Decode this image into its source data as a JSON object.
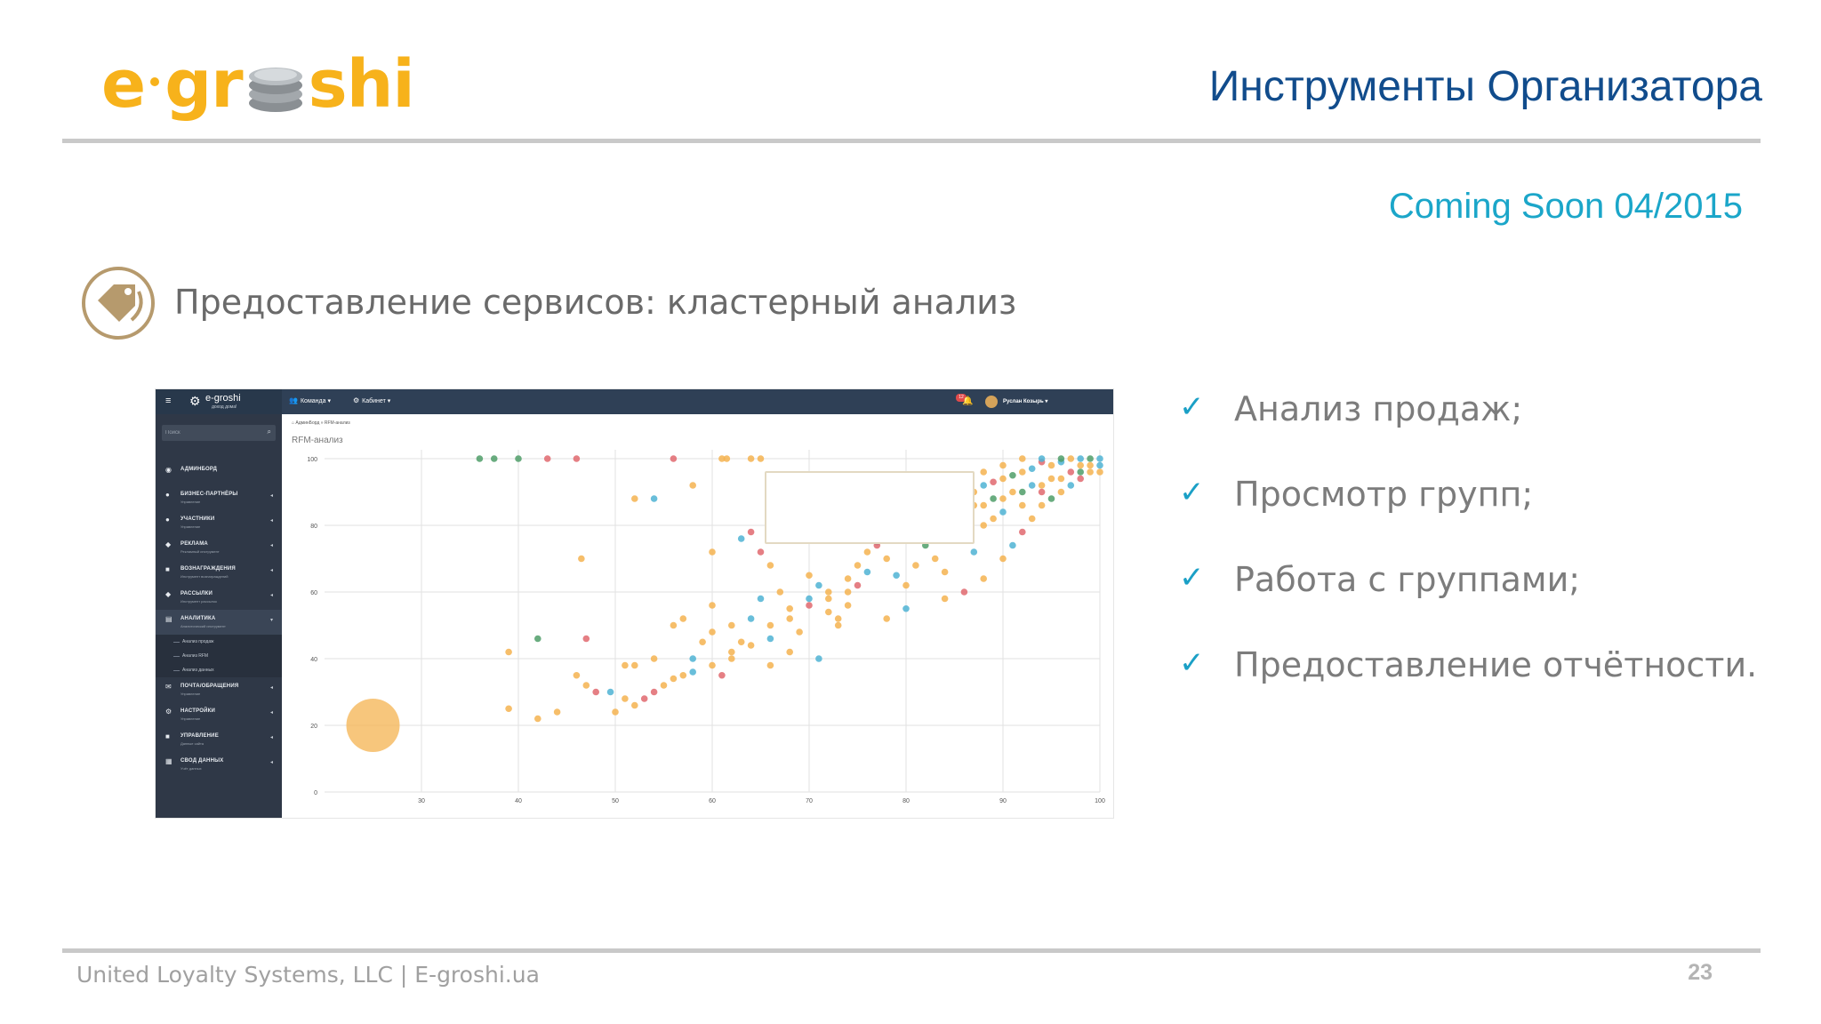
{
  "logo": {
    "text_before": "e",
    "text_after": "gr",
    "text_end": "shi"
  },
  "slide_title": "Инструменты Организатора",
  "coming_soon": "Coming Soon 04/2015",
  "section_title": "Предоставление сервисов: кластерный анализ",
  "app": {
    "brand": "e-groshi",
    "brand_sub": "доход дома!",
    "nav": [
      {
        "label": "Команда",
        "icon": "users-icon"
      },
      {
        "label": "Кабинет",
        "icon": "gear-icon"
      }
    ],
    "notifications_badge": "12",
    "user_name": "Руслан Козырь",
    "search_placeholder": "Поиск",
    "breadcrumb": "АдминБорд » RFM-анализ",
    "page_title": "RFM-анализ",
    "menu": [
      {
        "label": "АДМИНБОРД",
        "sub": "",
        "icon": "dashboard-icon"
      },
      {
        "label": "БИЗНЕС-ПАРТНЁРЫ",
        "sub": "Управление",
        "icon": "user-icon"
      },
      {
        "label": "УЧАСТНИКИ",
        "sub": "Управление",
        "icon": "users-icon"
      },
      {
        "label": "РЕКЛАМА",
        "sub": "Рекламный инструмент",
        "icon": "megaphone-icon"
      },
      {
        "label": "ВОЗНАГРАЖДЕНИЯ",
        "sub": "Инструмент вознаграждений",
        "icon": "gift-icon"
      },
      {
        "label": "РАССЫЛКИ",
        "sub": "Инструмент рассылок",
        "icon": "tag-icon"
      },
      {
        "label": "АНАЛИТИКА",
        "sub": "Аналитический инструмент",
        "icon": "chart-icon"
      }
    ],
    "submenu": [
      "Анализ продаж",
      "Анализ RFM",
      "Анализ данных"
    ],
    "menu_after": [
      {
        "label": "ПОЧТА/ОБРАЩЕНИЯ",
        "sub": "Управление",
        "icon": "mail-icon"
      },
      {
        "label": "НАСТРОЙКИ",
        "sub": "Управление",
        "icon": "cogs-icon"
      },
      {
        "label": "УПРАВЛЕНИЕ",
        "sub": "Данные сайта",
        "icon": "briefcase-icon"
      },
      {
        "label": "СВОД ДАННЫХ",
        "sub": "Учёт данных",
        "icon": "table-icon"
      }
    ]
  },
  "bullets": [
    "Анализ продаж;",
    "Просмотр групп;",
    "Работа с группами;",
    "Предоставление отчётности."
  ],
  "footer": "United Loyalty Systems, LLC | E-groshi.ua",
  "page_number": "23",
  "chart_data": {
    "type": "scatter",
    "xlim": [
      20,
      100
    ],
    "ylim": [
      0,
      100
    ],
    "x_ticks": [
      30,
      40,
      50,
      60,
      70,
      80,
      90,
      100
    ],
    "y_ticks": [
      0,
      20,
      40,
      60,
      80,
      100
    ],
    "grid": true,
    "colors": {
      "orange": "#f4b350",
      "red": "#e0696e",
      "blue": "#4fb3d3",
      "green": "#4f9d69"
    },
    "points": [
      [
        36,
        100,
        "green"
      ],
      [
        37.5,
        100,
        "green"
      ],
      [
        40,
        100,
        "green"
      ],
      [
        43,
        100,
        "red"
      ],
      [
        46,
        100,
        "red"
      ],
      [
        56,
        100,
        "red"
      ],
      [
        61,
        100,
        "orange"
      ],
      [
        61.5,
        100,
        "orange"
      ],
      [
        64,
        100,
        "orange"
      ],
      [
        65,
        100,
        "orange"
      ],
      [
        58,
        92,
        "orange"
      ],
      [
        52,
        88,
        "orange"
      ],
      [
        54,
        88,
        "blue"
      ],
      [
        46.5,
        70,
        "orange"
      ],
      [
        60,
        72,
        "orange"
      ],
      [
        39,
        42,
        "orange"
      ],
      [
        42,
        46,
        "green"
      ],
      [
        47,
        46,
        "red"
      ],
      [
        51,
        38,
        "orange"
      ],
      [
        52,
        38,
        "orange"
      ],
      [
        54,
        40,
        "orange"
      ],
      [
        56,
        50,
        "orange"
      ],
      [
        57,
        52,
        "orange"
      ],
      [
        46,
        35,
        "orange"
      ],
      [
        47,
        32,
        "orange"
      ],
      [
        48,
        30,
        "red"
      ],
      [
        49.5,
        30,
        "blue"
      ],
      [
        51,
        28,
        "orange"
      ],
      [
        53,
        28,
        "red"
      ],
      [
        55,
        32,
        "orange"
      ],
      [
        57,
        35,
        "orange"
      ],
      [
        58,
        40,
        "blue"
      ],
      [
        59,
        45,
        "orange"
      ],
      [
        60,
        48,
        "orange"
      ],
      [
        60,
        56,
        "orange"
      ],
      [
        62,
        50,
        "orange"
      ],
      [
        63,
        45,
        "orange"
      ],
      [
        64,
        52,
        "blue"
      ],
      [
        65,
        58,
        "blue"
      ],
      [
        66,
        50,
        "orange"
      ],
      [
        67,
        60,
        "orange"
      ],
      [
        68,
        55,
        "orange"
      ],
      [
        69,
        48,
        "orange"
      ],
      [
        70,
        65,
        "orange"
      ],
      [
        71,
        62,
        "blue"
      ],
      [
        72,
        58,
        "orange"
      ],
      [
        73,
        52,
        "orange"
      ],
      [
        74,
        60,
        "orange"
      ],
      [
        75,
        68,
        "orange"
      ],
      [
        76,
        72,
        "orange"
      ],
      [
        77,
        75,
        "blue"
      ],
      [
        78,
        70,
        "orange"
      ],
      [
        79,
        65,
        "blue"
      ],
      [
        80,
        62,
        "orange"
      ],
      [
        81,
        68,
        "orange"
      ],
      [
        82,
        74,
        "green"
      ],
      [
        83,
        70,
        "orange"
      ],
      [
        84,
        66,
        "orange"
      ],
      [
        85,
        78,
        "orange"
      ],
      [
        86,
        76,
        "red"
      ],
      [
        87,
        72,
        "blue"
      ],
      [
        88,
        80,
        "orange"
      ],
      [
        89,
        82,
        "orange"
      ],
      [
        63,
        76,
        "blue"
      ],
      [
        64,
        78,
        "red"
      ],
      [
        65,
        72,
        "red"
      ],
      [
        66,
        68,
        "orange"
      ],
      [
        70,
        58,
        "blue"
      ],
      [
        72,
        54,
        "orange"
      ],
      [
        74,
        56,
        "orange"
      ],
      [
        75,
        62,
        "red"
      ],
      [
        61,
        35,
        "red"
      ],
      [
        62,
        40,
        "orange"
      ],
      [
        66,
        38,
        "orange"
      ],
      [
        68,
        42,
        "orange"
      ],
      [
        71,
        40,
        "blue"
      ],
      [
        73,
        50,
        "orange"
      ],
      [
        78,
        52,
        "orange"
      ],
      [
        80,
        55,
        "blue"
      ],
      [
        84,
        58,
        "orange"
      ],
      [
        86,
        60,
        "red"
      ],
      [
        88,
        64,
        "orange"
      ],
      [
        90,
        70,
        "orange"
      ],
      [
        91,
        74,
        "blue"
      ],
      [
        92,
        78,
        "red"
      ],
      [
        93,
        82,
        "orange"
      ],
      [
        94,
        86,
        "orange"
      ],
      [
        95,
        88,
        "green"
      ],
      [
        96,
        90,
        "orange"
      ],
      [
        97,
        92,
        "blue"
      ],
      [
        98,
        94,
        "red"
      ],
      [
        99,
        96,
        "orange"
      ],
      [
        100,
        98,
        "blue"
      ],
      [
        99,
        100,
        "green"
      ],
      [
        98,
        100,
        "blue"
      ],
      [
        97,
        100,
        "orange"
      ],
      [
        96,
        99,
        "blue"
      ],
      [
        95,
        98,
        "orange"
      ],
      [
        94,
        99,
        "red"
      ],
      [
        93,
        97,
        "blue"
      ],
      [
        92,
        96,
        "orange"
      ],
      [
        91,
        95,
        "green"
      ],
      [
        90,
        94,
        "orange"
      ],
      [
        89,
        93,
        "red"
      ],
      [
        88,
        92,
        "blue"
      ],
      [
        87,
        90,
        "orange"
      ],
      [
        86,
        89,
        "orange"
      ],
      [
        85,
        88,
        "red"
      ],
      [
        84,
        87,
        "blue"
      ],
      [
        83,
        86,
        "orange"
      ],
      [
        82,
        85,
        "orange"
      ],
      [
        81,
        84,
        "red"
      ],
      [
        80,
        82,
        "orange"
      ],
      [
        79,
        80,
        "blue"
      ],
      [
        78,
        78,
        "orange"
      ],
      [
        90,
        84,
        "blue"
      ],
      [
        92,
        86,
        "orange"
      ],
      [
        94,
        90,
        "red"
      ],
      [
        96,
        94,
        "orange"
      ],
      [
        98,
        96,
        "green"
      ],
      [
        100,
        100,
        "blue"
      ],
      [
        99,
        98,
        "orange"
      ],
      [
        97,
        96,
        "red"
      ],
      [
        95,
        94,
        "orange"
      ],
      [
        93,
        92,
        "blue"
      ],
      [
        91,
        90,
        "orange"
      ],
      [
        89,
        88,
        "green"
      ],
      [
        87,
        86,
        "orange"
      ],
      [
        85,
        84,
        "red"
      ],
      [
        83,
        82,
        "blue"
      ],
      [
        81,
        80,
        "orange"
      ],
      [
        79,
        76,
        "orange"
      ],
      [
        77,
        74,
        "red"
      ],
      [
        76,
        66,
        "blue"
      ],
      [
        74,
        64,
        "orange"
      ],
      [
        72,
        60,
        "orange"
      ],
      [
        70,
        56,
        "red"
      ],
      [
        68,
        52,
        "orange"
      ],
      [
        66,
        46,
        "blue"
      ],
      [
        64,
        44,
        "orange"
      ],
      [
        62,
        42,
        "orange"
      ],
      [
        60,
        38,
        "orange"
      ],
      [
        58,
        36,
        "blue"
      ],
      [
        56,
        34,
        "orange"
      ],
      [
        54,
        30,
        "red"
      ],
      [
        52,
        26,
        "orange"
      ],
      [
        50,
        24,
        "orange"
      ],
      [
        44,
        24,
        "orange"
      ],
      [
        42,
        22,
        "orange"
      ],
      [
        39,
        25,
        "orange"
      ],
      [
        86,
        94,
        "orange"
      ],
      [
        88,
        96,
        "orange"
      ],
      [
        90,
        98,
        "orange"
      ],
      [
        92,
        100,
        "orange"
      ],
      [
        94,
        100,
        "blue"
      ],
      [
        96,
        100,
        "green"
      ],
      [
        98,
        98,
        "orange"
      ],
      [
        100,
        96,
        "orange"
      ],
      [
        80,
        76,
        "orange"
      ],
      [
        82,
        80,
        "red"
      ],
      [
        84,
        82,
        "orange"
      ],
      [
        86,
        84,
        "blue"
      ],
      [
        88,
        86,
        "orange"
      ],
      [
        90,
        88,
        "orange"
      ],
      [
        92,
        90,
        "green"
      ],
      [
        94,
        92,
        "orange"
      ]
    ],
    "large_bubble": {
      "x": 25,
      "y": 20,
      "color": "orange"
    }
  }
}
